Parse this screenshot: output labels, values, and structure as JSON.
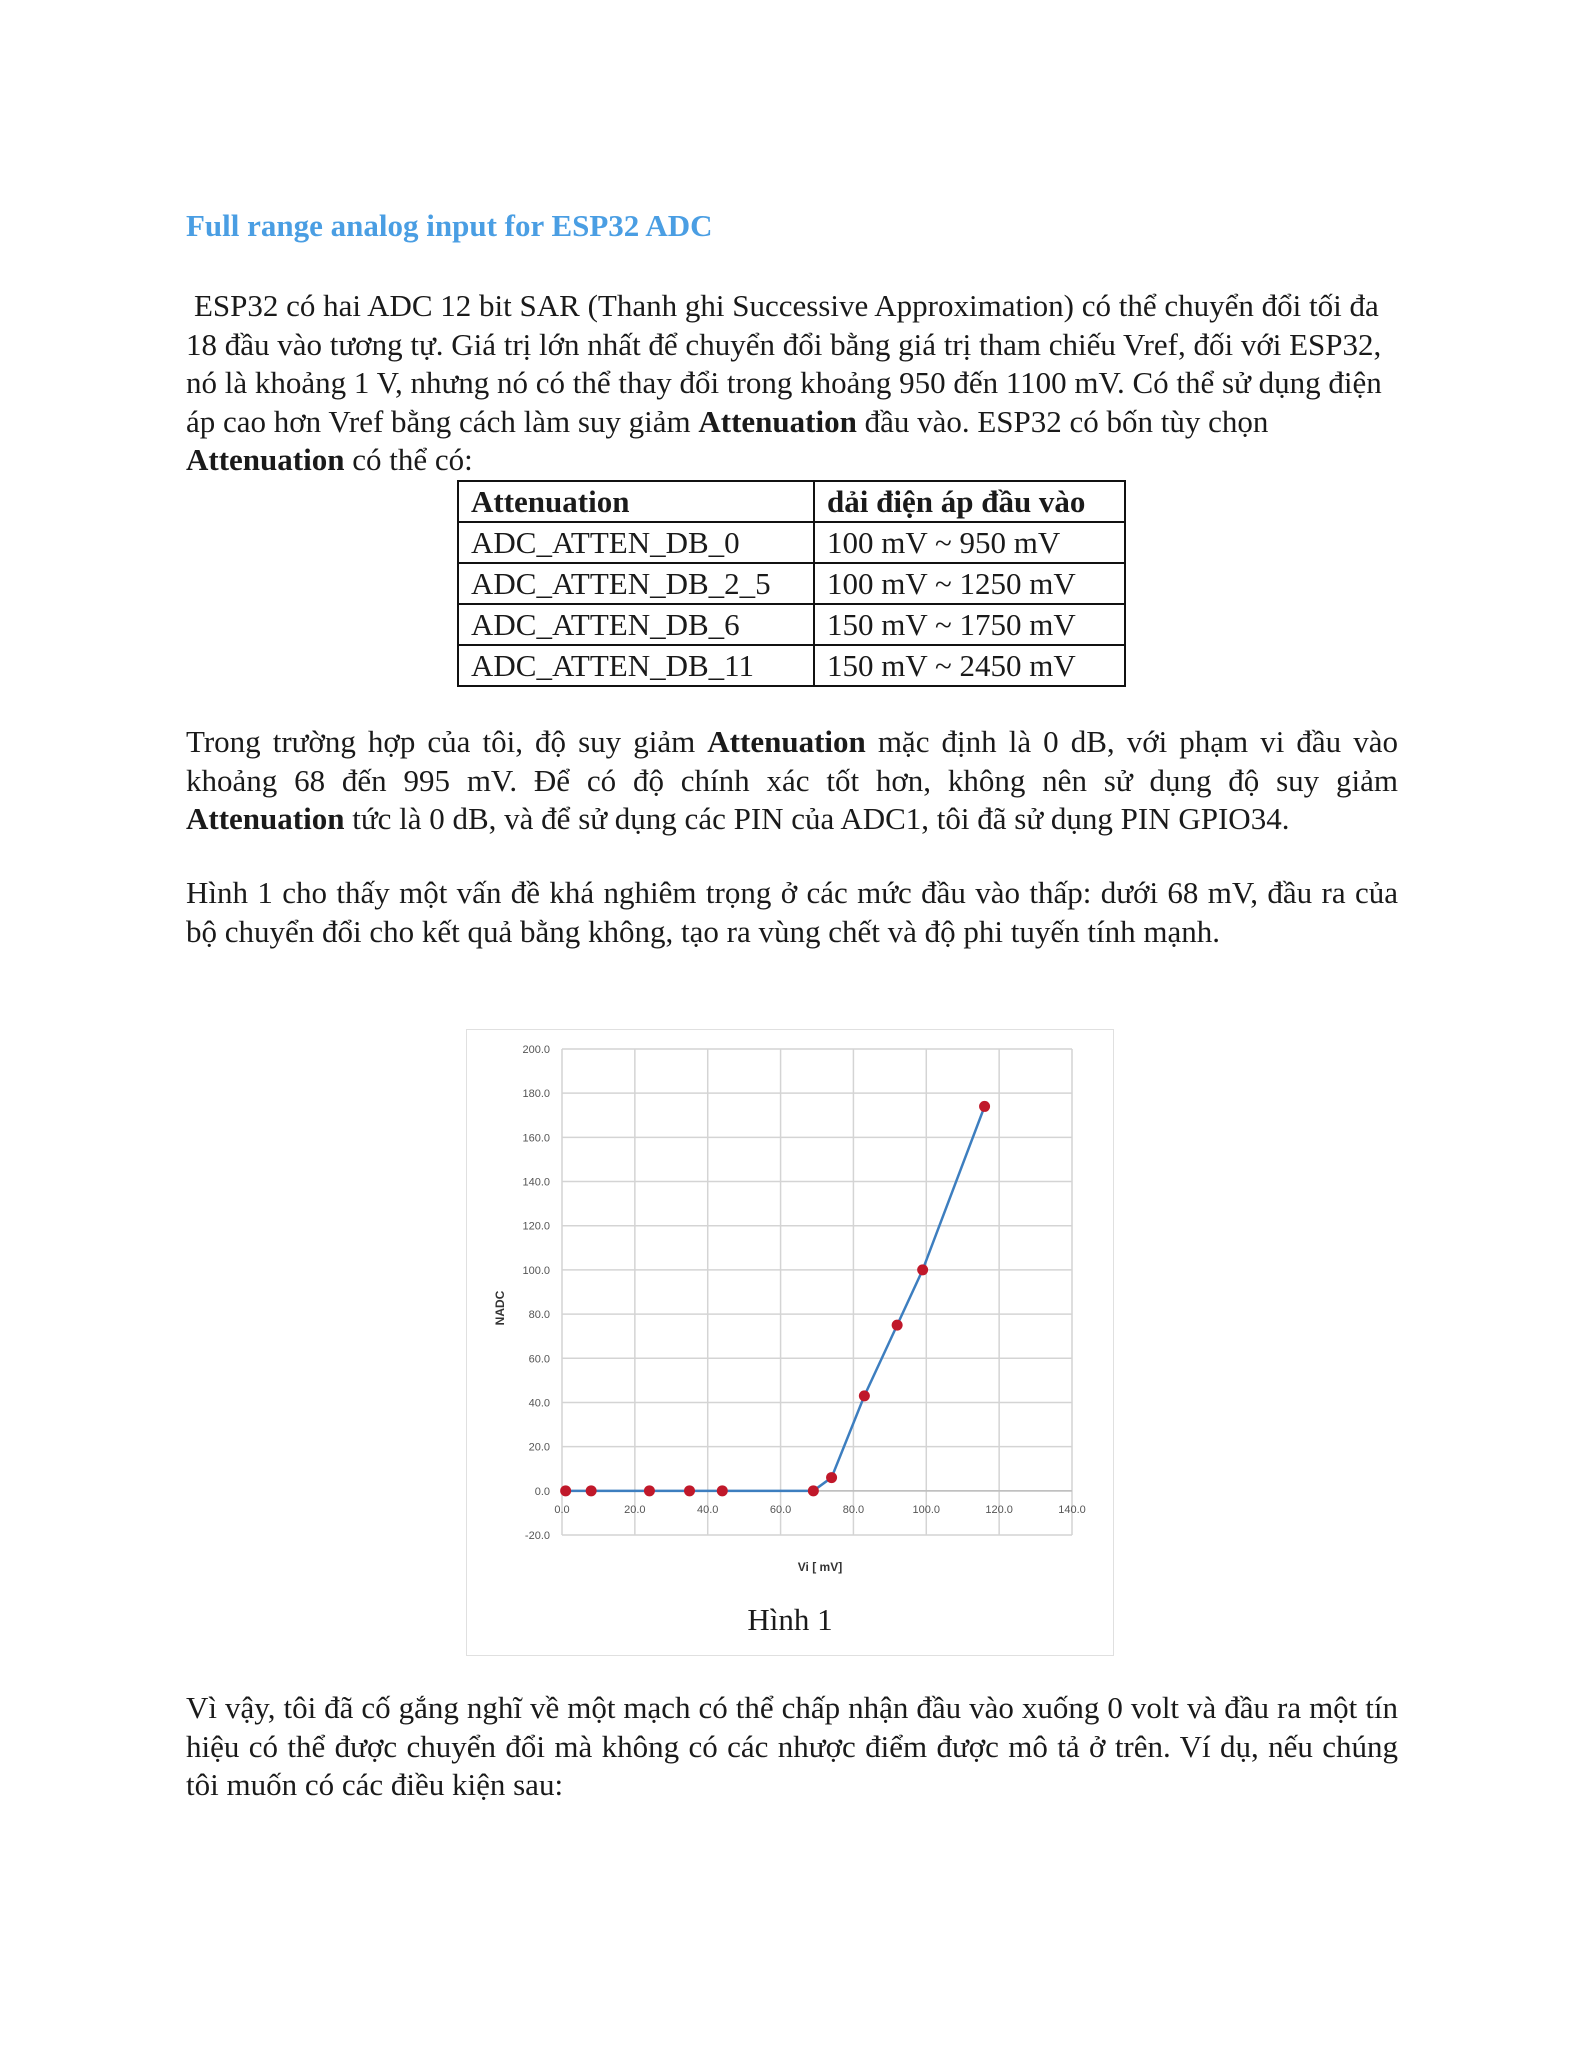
{
  "heading": "Full range analog input for ESP32 ADC",
  "p1": [
    {
      "t": "ESP32 có hai ADC 12 bit SAR (Thanh ghi Successive Approximation) có thể chuyển đổi tối đa 18 đầu vào tương tự. Giá trị lớn nhất để chuyển đổi bằng giá trị tham chiếu Vref, đối với ESP32, nó là khoảng 1 V, nhưng nó có thể thay đổi trong khoảng 950 đến 1100 mV. Có thể sử dụng điện áp cao hơn Vref bằng cách làm suy giảm "
    },
    {
      "t": "Attenuation",
      "b": true
    },
    {
      "t": " đầu vào. ESP32 có bốn tùy chọn "
    },
    {
      "t": "Attenuation",
      "b": true
    },
    {
      "t": " có thể có:"
    }
  ],
  "table": {
    "headers": [
      "Attenuation",
      "dải điện áp đầu vào"
    ],
    "rows": [
      [
        "ADC_ATTEN_DB_0",
        "100 mV ~ 950 mV"
      ],
      [
        "ADC_ATTEN_DB_2_5",
        "100 mV ~ 1250 mV"
      ],
      [
        "ADC_ATTEN_DB_6",
        "150 mV ~ 1750 mV"
      ],
      [
        "ADC_ATTEN_DB_11",
        "150 mV ~ 2450 mV"
      ]
    ]
  },
  "p2": [
    {
      "t": "Trong trường hợp của tôi, độ suy giảm "
    },
    {
      "t": "Attenuation",
      "b": true
    },
    {
      "t": " mặc định là 0 dB, với phạm vi đầu vào khoảng 68 đến 995 mV. Để có độ chính xác tốt hơn, không nên sử dụng độ suy giảm "
    },
    {
      "t": "Attenuation",
      "b": true
    },
    {
      "t": " tức là 0 dB, và để sử dụng các PIN của ADC1, tôi đã sử dụng PIN GPIO34."
    }
  ],
  "p3": [
    {
      "t": "Hình 1 cho thấy một vấn đề khá nghiêm trọng ở các mức đầu vào thấp: dưới 68 mV, đầu ra của bộ chuyển đổi cho kết quả bằng không, tạo ra vùng chết và độ phi tuyến tính mạnh."
    }
  ],
  "figure_caption": "Hình 1",
  "p4": [
    {
      "t": "Vì vậy, tôi đã cố gắng nghĩ về một mạch có thể chấp nhận đầu vào xuống 0 volt và đầu ra một tín hiệu có thể được chuyển đổi mà không có các nhược điểm được mô tả ở trên. Ví dụ, nếu chúng tôi muốn có các điều kiện sau:"
    }
  ],
  "chart_data": {
    "type": "scatter",
    "xlabel": "Vi [ mV]",
    "ylabel": "NADC",
    "xlim": [
      0,
      140
    ],
    "ylim": [
      -20,
      200
    ],
    "x_ticks": [
      "0.0",
      "20.0",
      "40.0",
      "60.0",
      "80.0",
      "100.0",
      "120.0",
      "140.0"
    ],
    "y_ticks": [
      "-20.0",
      "0.0",
      "20.0",
      "40.0",
      "60.0",
      "80.0",
      "100.0",
      "120.0",
      "140.0",
      "160.0",
      "180.0",
      "200.0"
    ],
    "grid": true,
    "line_color": "#3d7ebf",
    "marker_color": "#c0182a",
    "points": [
      [
        1.0,
        0
      ],
      [
        8.0,
        0
      ],
      [
        24.0,
        0
      ],
      [
        35.0,
        0
      ],
      [
        44.0,
        0
      ],
      [
        69.0,
        0
      ],
      [
        74.0,
        6
      ],
      [
        83.0,
        43
      ],
      [
        92.0,
        75
      ],
      [
        99.0,
        100
      ],
      [
        116.0,
        174
      ]
    ]
  }
}
